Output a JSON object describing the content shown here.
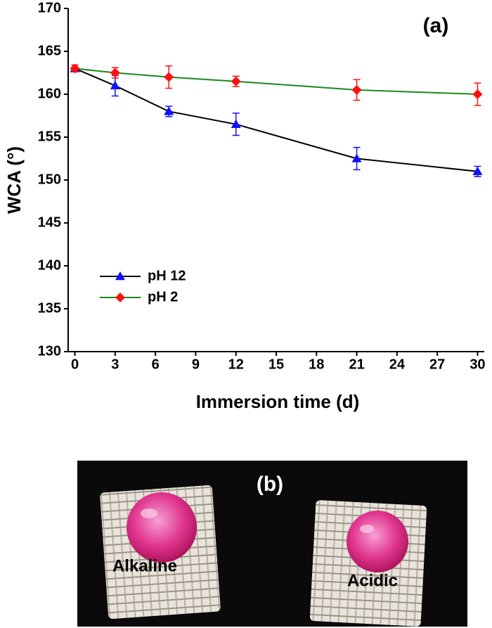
{
  "chart_data": {
    "type": "line",
    "annotation": "(a)",
    "x_label": "Immersion time (d)",
    "y_label": "WCA (°)",
    "x": [
      0,
      3,
      7,
      12,
      21,
      30
    ],
    "series": [
      {
        "name": "pH 12",
        "color": "#1010ff",
        "line_color": "#000000",
        "marker": "triangle",
        "values": [
          163,
          161,
          158,
          156.5,
          152.5,
          151
        ],
        "errors": [
          0.4,
          1.2,
          0.6,
          1.3,
          1.3,
          0.6
        ]
      },
      {
        "name": "pH 2",
        "color": "#ff1010",
        "line_color": "#1a8a1a",
        "marker": "diamond",
        "values": [
          163,
          162.5,
          162,
          161.5,
          160.5,
          160
        ],
        "errors": [
          0.4,
          0.6,
          1.3,
          0.6,
          1.2,
          1.3
        ]
      }
    ],
    "xlim": [
      -0.5,
      30.5
    ],
    "xticks": [
      0,
      3,
      6,
      9,
      12,
      15,
      18,
      21,
      24,
      27,
      30
    ],
    "ylim": [
      130,
      170
    ],
    "yticks": [
      130,
      135,
      140,
      145,
      150,
      155,
      160,
      165,
      170
    ],
    "grid": false,
    "legend": "lower left"
  },
  "photo": {
    "label": "(b)",
    "samples": [
      "Alkaline",
      "Acidic"
    ]
  }
}
